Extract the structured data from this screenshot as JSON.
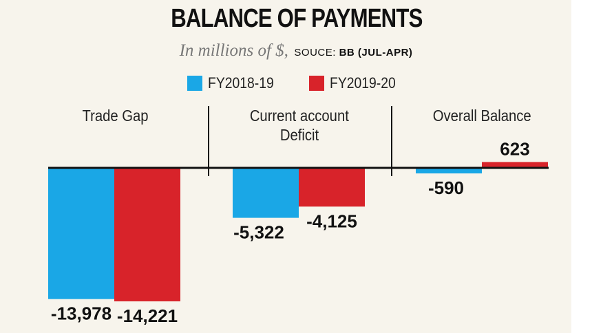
{
  "title": "BALANCE OF PAYMENTS",
  "subtitle": "In millions of $,",
  "source": "SOUCE: BB (JUL-APR)",
  "source_prefix": "SOUCE: ",
  "source_name": "BB (JUL-APR)",
  "colors": {
    "fy2018": "#1aa7e6",
    "fy2019": "#d8232a"
  },
  "chart_data": {
    "type": "bar",
    "title": "BALANCE OF PAYMENTS",
    "unit": "In millions of $",
    "categories": [
      "Trade Gap",
      "Current account Deficit",
      "Overall Balance"
    ],
    "category_lines": [
      [
        "Trade Gap"
      ],
      [
        "Current account",
        "Deficit"
      ],
      [
        "Overall Balance"
      ]
    ],
    "series": [
      {
        "name": "FY2018-19",
        "color": "#1aa7e6",
        "values": [
          -13978,
          -5322,
          -590
        ],
        "labels": [
          "-13,978",
          "-5,322",
          "-590"
        ]
      },
      {
        "name": "FY2019-20",
        "color": "#d8232a",
        "values": [
          -14221,
          -4125,
          623
        ],
        "labels": [
          "-14,221",
          "-4,125",
          "623"
        ]
      }
    ],
    "ylim": [
      -14221,
      623
    ],
    "legend": "top",
    "grid": false
  }
}
